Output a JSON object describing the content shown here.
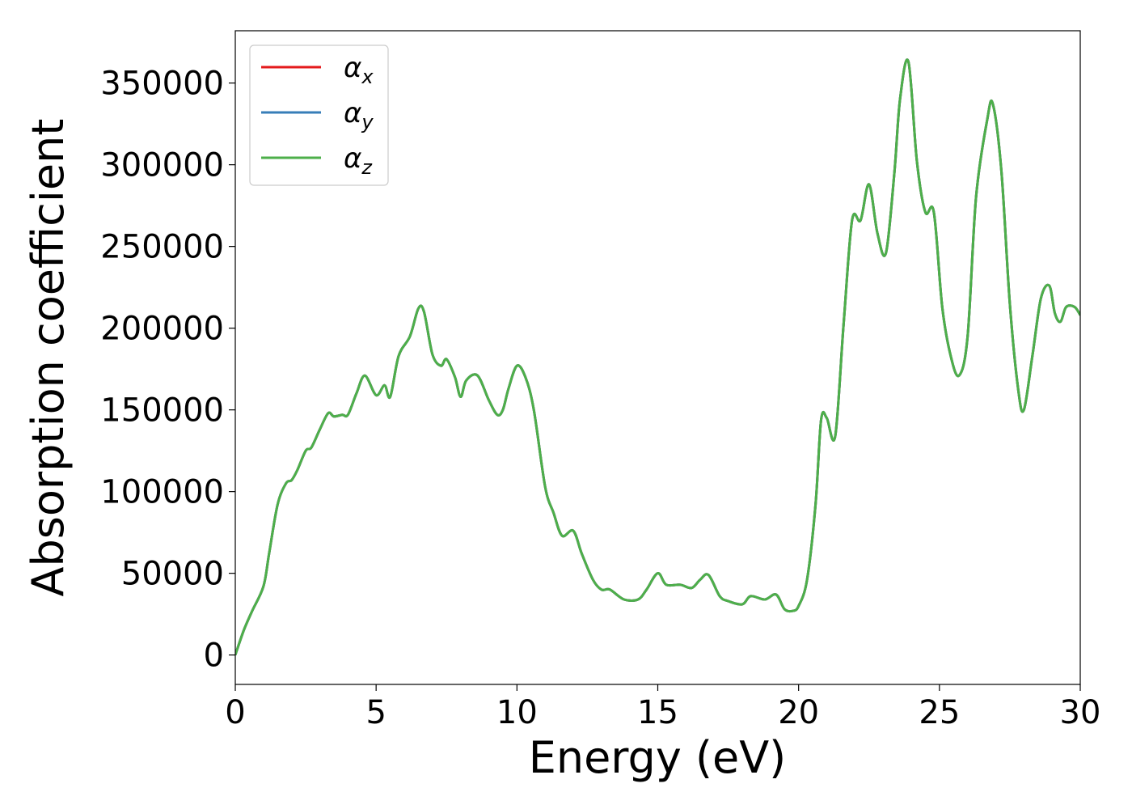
{
  "chart_data": {
    "type": "line",
    "xlabel": "Energy (eV)",
    "ylabel": "Absorption coefficient",
    "xlim": [
      0,
      30
    ],
    "ylim": [
      -18000,
      382000
    ],
    "x_ticks": [
      0,
      5,
      10,
      15,
      20,
      25,
      30
    ],
    "x_tick_labels": [
      "0",
      "5",
      "10",
      "15",
      "20",
      "25",
      "30"
    ],
    "y_ticks": [
      0,
      50000,
      100000,
      150000,
      200000,
      250000,
      300000,
      350000
    ],
    "y_tick_labels": [
      "0",
      "50000",
      "100000",
      "150000",
      "200000",
      "250000",
      "300000",
      "350000"
    ],
    "grid": false,
    "legend_position": "top-left",
    "x": [
      0,
      0.3,
      0.6,
      1.0,
      1.2,
      1.5,
      1.8,
      2.0,
      2.2,
      2.5,
      2.7,
      3.0,
      3.3,
      3.5,
      3.8,
      4.0,
      4.3,
      4.6,
      5.0,
      5.3,
      5.5,
      5.8,
      6.2,
      6.5,
      6.7,
      7.0,
      7.3,
      7.5,
      7.8,
      8.0,
      8.2,
      8.6,
      9.0,
      9.3,
      9.5,
      9.7,
      10.0,
      10.3,
      10.6,
      11.0,
      11.3,
      11.6,
      12.0,
      12.3,
      12.7,
      13.0,
      13.3,
      13.8,
      14.3,
      14.6,
      15.0,
      15.3,
      15.8,
      16.2,
      16.5,
      16.8,
      17.2,
      17.5,
      18.0,
      18.3,
      18.8,
      19.2,
      19.5,
      19.8,
      20.0,
      20.3,
      20.6,
      20.8,
      21.0,
      21.3,
      21.6,
      21.9,
      22.2,
      22.5,
      22.8,
      23.1,
      23.4,
      23.6,
      23.9,
      24.2,
      24.5,
      24.8,
      25.1,
      25.4,
      25.7,
      26.0,
      26.3,
      26.7,
      26.9,
      27.2,
      27.5,
      27.8,
      28.0,
      28.3,
      28.6,
      28.9,
      29.1,
      29.3,
      29.5,
      29.8,
      30.0
    ],
    "series": [
      {
        "name": "α_x",
        "name_base": "α",
        "name_sub": "x",
        "color": "#e41a1c",
        "y": [
          0,
          15000,
          27000,
          42000,
          62000,
          92000,
          105000,
          107000,
          113000,
          125000,
          127000,
          138000,
          148000,
          146000,
          147000,
          147000,
          160000,
          171000,
          159000,
          165000,
          158000,
          183000,
          195000,
          212000,
          210000,
          184000,
          177000,
          181000,
          170000,
          158000,
          168000,
          171000,
          156000,
          147000,
          150000,
          163000,
          177000,
          170000,
          150000,
          103000,
          87000,
          73000,
          76000,
          62000,
          46000,
          40000,
          40000,
          34000,
          34000,
          40000,
          50000,
          43000,
          43000,
          41000,
          46000,
          49000,
          36000,
          33000,
          31000,
          36000,
          34000,
          37000,
          28000,
          27000,
          30000,
          46000,
          92000,
          144000,
          145000,
          134000,
          203000,
          266000,
          266000,
          288000,
          258000,
          246000,
          295000,
          340000,
          363000,
          302000,
          271000,
          271000,
          213000,
          183000,
          171000,
          195000,
          280000,
          328000,
          337000,
          296000,
          215000,
          162000,
          150000,
          183000,
          218000,
          226000,
          209000,
          204000,
          213000,
          213000,
          208000
        ]
      },
      {
        "name": "α_y",
        "name_base": "α",
        "name_sub": "y",
        "color": "#377eb8",
        "y": [
          0,
          15000,
          27000,
          42000,
          62000,
          92000,
          105000,
          107000,
          113000,
          125000,
          127000,
          138000,
          148000,
          146000,
          147000,
          147000,
          160000,
          171000,
          159000,
          165000,
          158000,
          183000,
          195000,
          212000,
          210000,
          184000,
          177000,
          181000,
          170000,
          158000,
          168000,
          171000,
          156000,
          147000,
          150000,
          163000,
          177000,
          170000,
          150000,
          103000,
          87000,
          73000,
          76000,
          62000,
          46000,
          40000,
          40000,
          34000,
          34000,
          40000,
          50000,
          43000,
          43000,
          41000,
          46000,
          49000,
          36000,
          33000,
          31000,
          36000,
          34000,
          37000,
          28000,
          27000,
          30000,
          46000,
          92000,
          144000,
          145000,
          134000,
          203000,
          266000,
          266000,
          288000,
          258000,
          246000,
          295000,
          340000,
          363000,
          302000,
          271000,
          271000,
          213000,
          183000,
          171000,
          195000,
          280000,
          328000,
          337000,
          296000,
          215000,
          162000,
          150000,
          183000,
          218000,
          226000,
          209000,
          204000,
          213000,
          213000,
          208000
        ]
      },
      {
        "name": "α_z",
        "name_base": "α",
        "name_sub": "z",
        "color": "#4daf4a",
        "y": [
          0,
          15000,
          27000,
          42000,
          62000,
          92000,
          105000,
          107000,
          113000,
          125000,
          127000,
          138000,
          148000,
          146000,
          147000,
          147000,
          160000,
          171000,
          159000,
          165000,
          158000,
          183000,
          195000,
          212000,
          210000,
          184000,
          177000,
          181000,
          170000,
          158000,
          168000,
          171000,
          156000,
          147000,
          150000,
          163000,
          177000,
          170000,
          150000,
          103000,
          87000,
          73000,
          76000,
          62000,
          46000,
          40000,
          40000,
          34000,
          34000,
          40000,
          50000,
          43000,
          43000,
          41000,
          46000,
          49000,
          36000,
          33000,
          31000,
          36000,
          34000,
          37000,
          28000,
          27000,
          30000,
          46000,
          92000,
          144000,
          145000,
          134000,
          203000,
          266000,
          266000,
          288000,
          258000,
          246000,
          295000,
          340000,
          363000,
          302000,
          271000,
          271000,
          213000,
          183000,
          171000,
          195000,
          280000,
          328000,
          337000,
          296000,
          215000,
          162000,
          150000,
          183000,
          218000,
          226000,
          209000,
          204000,
          213000,
          213000,
          208000
        ]
      }
    ]
  }
}
